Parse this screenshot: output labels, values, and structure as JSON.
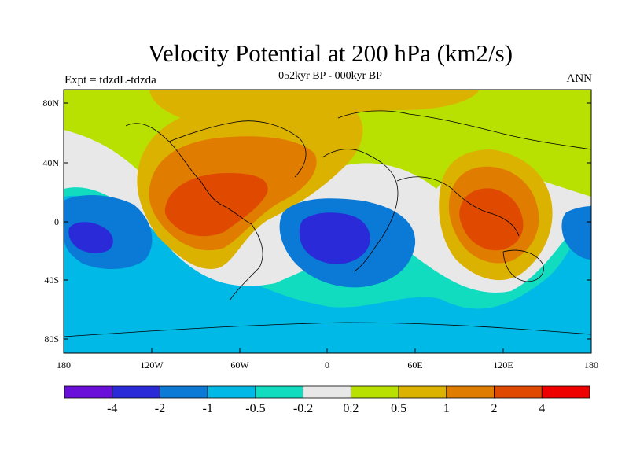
{
  "title": "Velocity Potential at 200 hPa (km2/s)",
  "subtitle": "052kyr BP - 000kyr BP",
  "left_label": "Expt = tdzdL-tdzda",
  "right_label": "ANN",
  "lat_ticks": [
    "80N",
    "40N",
    "0",
    "40S",
    "80S"
  ],
  "lon_ticks": [
    "180",
    "120W",
    "60W",
    "0",
    "60E",
    "120E",
    "180"
  ],
  "colorbar": {
    "colors": [
      "#6a0fd9",
      "#2a2ad8",
      "#0a7ad6",
      "#00b9e6",
      "#12dcc0",
      "#e8e8e8",
      "#b8e000",
      "#dcb200",
      "#e07c00",
      "#e04a00",
      "#ee0000"
    ],
    "labels": [
      "-4",
      "-2",
      "-1",
      "-0.5",
      "-0.2",
      "0.2",
      "0.5",
      "1",
      "2",
      "4"
    ]
  }
}
